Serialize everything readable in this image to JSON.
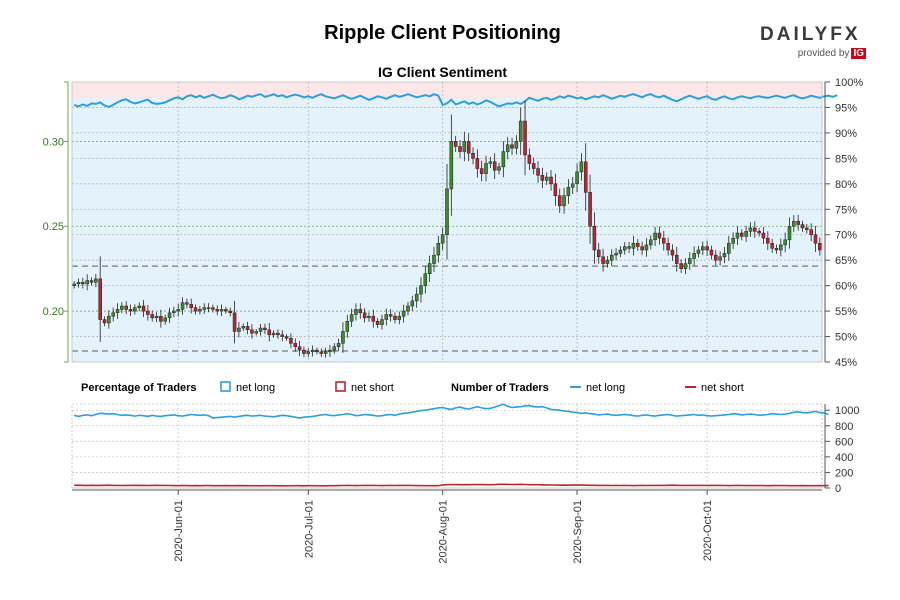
{
  "header": {
    "title": "Ripple Client Positioning",
    "subtitle": "IG Client Sentiment",
    "logo_text": "DAILYFX",
    "logo_provided": "provided by",
    "logo_ig": "IG"
  },
  "legend": {
    "pct_heading": "Percentage of Traders",
    "pct_long": "net long",
    "pct_short": "net short",
    "num_heading": "Number of Traders",
    "num_long": "net long",
    "num_short": "net short"
  },
  "colors": {
    "long": "#2b9fe0",
    "short": "#c0262d",
    "candle_up": "#3c8b2e",
    "candle_down": "#b8262d",
    "long_fill": "#e3f2fb",
    "short_fill": "#fbe7e8",
    "grid": "#6aa84f"
  },
  "chart_data": [
    {
      "type": "candlestick",
      "title": "IG Client Sentiment",
      "left_axis": {
        "ylim": [
          0.17,
          0.335
        ],
        "ticks": [
          "0.30",
          "0.25",
          "0.20"
        ],
        "tick_values": [
          0.3,
          0.25,
          0.2
        ]
      },
      "right_axis": {
        "ylim": [
          45,
          100
        ],
        "ticks": [
          "100%",
          "95%",
          "90%",
          "85%",
          "80%",
          "75%",
          "70%",
          "65%",
          "60%",
          "55%",
          "50%",
          "45%"
        ],
        "tick_values": [
          100,
          95,
          90,
          85,
          80,
          75,
          70,
          65,
          60,
          55,
          50,
          45
        ]
      },
      "x_ticks": [
        "2020-Jun-01",
        "2020-Jul-01",
        "2020-Aug-01",
        "2020-Sep-01",
        "2020-Oct-01"
      ],
      "x_tick_index": [
        24,
        54,
        85,
        116,
        146
      ],
      "reference_levels": [
        0.2265,
        0.1765
      ],
      "close": [
        0.216,
        0.217,
        0.216,
        0.218,
        0.217,
        0.219,
        0.195,
        0.193,
        0.197,
        0.199,
        0.201,
        0.203,
        0.201,
        0.2,
        0.202,
        0.203,
        0.2,
        0.198,
        0.196,
        0.197,
        0.194,
        0.196,
        0.199,
        0.2,
        0.201,
        0.205,
        0.204,
        0.202,
        0.2,
        0.201,
        0.202,
        0.202,
        0.201,
        0.2,
        0.201,
        0.2,
        0.199,
        0.188,
        0.19,
        0.191,
        0.189,
        0.187,
        0.188,
        0.19,
        0.189,
        0.186,
        0.187,
        0.186,
        0.185,
        0.184,
        0.181,
        0.179,
        0.177,
        0.175,
        0.176,
        0.177,
        0.176,
        0.175,
        0.176,
        0.177,
        0.179,
        0.181,
        0.188,
        0.194,
        0.198,
        0.201,
        0.199,
        0.196,
        0.197,
        0.194,
        0.192,
        0.195,
        0.198,
        0.197,
        0.195,
        0.197,
        0.2,
        0.203,
        0.206,
        0.21,
        0.215,
        0.222,
        0.228,
        0.233,
        0.24,
        0.245,
        0.272,
        0.3,
        0.297,
        0.294,
        0.3,
        0.293,
        0.29,
        0.284,
        0.281,
        0.287,
        0.288,
        0.283,
        0.285,
        0.294,
        0.298,
        0.296,
        0.3,
        0.312,
        0.292,
        0.287,
        0.284,
        0.28,
        0.277,
        0.279,
        0.275,
        0.268,
        0.262,
        0.268,
        0.273,
        0.275,
        0.282,
        0.288,
        0.27,
        0.25,
        0.236,
        0.232,
        0.228,
        0.23,
        0.233,
        0.234,
        0.236,
        0.238,
        0.237,
        0.24,
        0.238,
        0.236,
        0.239,
        0.242,
        0.246,
        0.243,
        0.24,
        0.236,
        0.233,
        0.228,
        0.225,
        0.228,
        0.231,
        0.234,
        0.236,
        0.238,
        0.236,
        0.233,
        0.23,
        0.232,
        0.234,
        0.24,
        0.243,
        0.246,
        0.244,
        0.247,
        0.249,
        0.247,
        0.246,
        0.243,
        0.24,
        0.237,
        0.236,
        0.239,
        0.242,
        0.25,
        0.253,
        0.251,
        0.249,
        0.248,
        0.245,
        0.24,
        0.236
      ],
      "long_pct": [
        95.5,
        95.2,
        95.6,
        95.3,
        95.8,
        95.7,
        96.0,
        95.4,
        95.1,
        95.5,
        96.0,
        96.4,
        96.6,
        96.1,
        95.8,
        96.0,
        96.3,
        96.5,
        95.9,
        95.7,
        95.8,
        96.0,
        96.4,
        96.8,
        97.0,
        96.6,
        97.2,
        97.4,
        97.0,
        97.3,
        96.9,
        97.2,
        97.5,
        97.1,
        96.8,
        97.0,
        97.4,
        97.1,
        96.6,
        96.9,
        97.3,
        97.1,
        97.4,
        97.6,
        97.1,
        97.3,
        97.6,
        97.2,
        97.4,
        97.0,
        97.3,
        97.5,
        97.3,
        97.0,
        97.2,
        96.9,
        97.3,
        97.6,
        97.2,
        97.0,
        96.8,
        97.1,
        97.4,
        97.0,
        96.7,
        97.0,
        97.3,
        96.9,
        96.5,
        96.8,
        97.2,
        97.0,
        96.7,
        97.1,
        97.4,
        97.1,
        97.3,
        97.6,
        97.3,
        97.0,
        97.2,
        97.4,
        97.2,
        97.6,
        97.3,
        95.5,
        95.8,
        96.5,
        95.6,
        95.9,
        96.2,
        95.7,
        96.0,
        95.6,
        95.9,
        96.4,
        96.1,
        95.6,
        95.2,
        95.5,
        95.8,
        95.7,
        96.0,
        95.7,
        96.2,
        96.9,
        96.6,
        96.3,
        96.7,
        96.9,
        96.5,
        96.8,
        97.2,
        96.9,
        97.3,
        97.1,
        96.8,
        97.0,
        96.6,
        96.9,
        97.2,
        97.0,
        97.4,
        97.1,
        96.7,
        97.0,
        97.3,
        97.1,
        97.4,
        97.6,
        97.3,
        97.0,
        97.4,
        97.6,
        97.2,
        97.0,
        97.3,
        96.9,
        96.5,
        96.2,
        96.6,
        97.0,
        97.3,
        97.0,
        96.7,
        97.0,
        97.2,
        96.7,
        96.5,
        96.9,
        97.2,
        96.8,
        96.6,
        97.0,
        97.2,
        97.0,
        96.8,
        97.1,
        97.2,
        97.0,
        96.9,
        97.1,
        97.3,
        97.1,
        96.9,
        97.2,
        97.4,
        97.0,
        96.8,
        97.0,
        97.3,
        97.1,
        96.9,
        97.2,
        97.3,
        97.1,
        97.4
      ],
      "series": [
        {
          "name": "net long",
          "axis": "right"
        },
        {
          "name": "net short",
          "axis": "right"
        }
      ]
    },
    {
      "type": "line",
      "ylim": [
        0,
        1080
      ],
      "ticks": [
        "1000",
        "800",
        "600",
        "400",
        "200",
        "0"
      ],
      "tick_values": [
        1000,
        800,
        600,
        400,
        200,
        0
      ],
      "series": [
        {
          "name": "net long",
          "values": [
            935,
            920,
            935,
            940,
            930,
            945,
            960,
            955,
            950,
            955,
            945,
            935,
            940,
            935,
            925,
            935,
            930,
            920,
            935,
            925,
            920,
            930,
            935,
            940,
            930,
            925,
            935,
            945,
            940,
            935,
            940,
            930,
            900,
            905,
            910,
            915,
            920,
            910,
            920,
            930,
            935,
            925,
            930,
            935,
            925,
            920,
            915,
            925,
            935,
            930,
            920,
            910,
            900,
            910,
            915,
            920,
            930,
            940,
            945,
            935,
            930,
            940,
            945,
            955,
            945,
            930,
            935,
            945,
            940,
            935,
            925,
            930,
            940,
            945,
            935,
            950,
            960,
            965,
            975,
            985,
            995,
            1000,
            1010,
            1020,
            1030,
            1035,
            1020,
            1010,
            1030,
            1040,
            1025,
            1015,
            1030,
            1045,
            1030,
            1020,
            1025,
            1040,
            1060,
            1075,
            1050,
            1035,
            1040,
            1045,
            1055,
            1060,
            1045,
            1040,
            1045,
            1030,
            1010,
            1005,
            1000,
            990,
            985,
            975,
            970,
            960,
            965,
            955,
            950,
            940,
            945,
            950,
            940,
            935,
            940,
            945,
            940,
            930,
            925,
            935,
            940,
            930,
            925,
            935,
            940,
            945,
            935,
            925,
            930,
            935,
            940,
            945,
            935,
            940,
            930,
            925,
            930,
            935,
            940,
            945,
            955,
            950,
            940,
            945,
            950,
            945,
            935,
            940,
            945,
            955,
            950,
            945,
            950,
            960,
            975,
            980,
            970,
            965,
            975,
            985,
            970,
            965,
            945
          ]
        },
        {
          "name": "net short",
          "values": [
            35,
            36,
            34,
            33,
            35,
            34,
            33,
            35,
            36,
            34,
            33,
            32,
            33,
            34,
            35,
            34,
            33,
            32,
            33,
            35,
            34,
            33,
            32,
            31,
            30,
            32,
            31,
            30,
            31,
            30,
            31,
            31,
            30,
            29,
            30,
            31,
            30,
            30,
            31,
            30,
            29,
            30,
            29,
            28,
            29,
            30,
            29,
            28,
            29,
            28,
            29,
            30,
            29,
            28,
            29,
            30,
            29,
            28,
            28,
            29,
            30,
            31,
            32,
            33,
            32,
            31,
            32,
            33,
            34,
            33,
            32,
            31,
            32,
            33,
            32,
            33,
            34,
            33,
            32,
            31,
            31,
            30,
            30,
            29,
            29,
            40,
            42,
            45,
            44,
            43,
            42,
            43,
            44,
            45,
            44,
            43,
            42,
            44,
            47,
            48,
            46,
            45,
            46,
            47,
            45,
            42,
            43,
            42,
            40,
            40,
            39,
            38,
            36,
            37,
            36,
            37,
            38,
            37,
            36,
            35,
            35,
            34,
            33,
            33,
            32,
            33,
            32,
            33,
            32,
            31,
            32,
            33,
            32,
            33,
            34,
            33,
            34,
            35,
            36,
            35,
            34,
            33,
            34,
            33,
            34,
            33,
            32,
            33,
            34,
            33,
            32,
            31,
            32,
            33,
            32,
            31,
            32,
            31,
            32,
            31,
            30,
            31,
            32,
            31,
            32,
            30,
            29,
            30,
            31,
            30,
            29,
            30,
            31,
            30,
            31
          ]
        }
      ]
    }
  ]
}
